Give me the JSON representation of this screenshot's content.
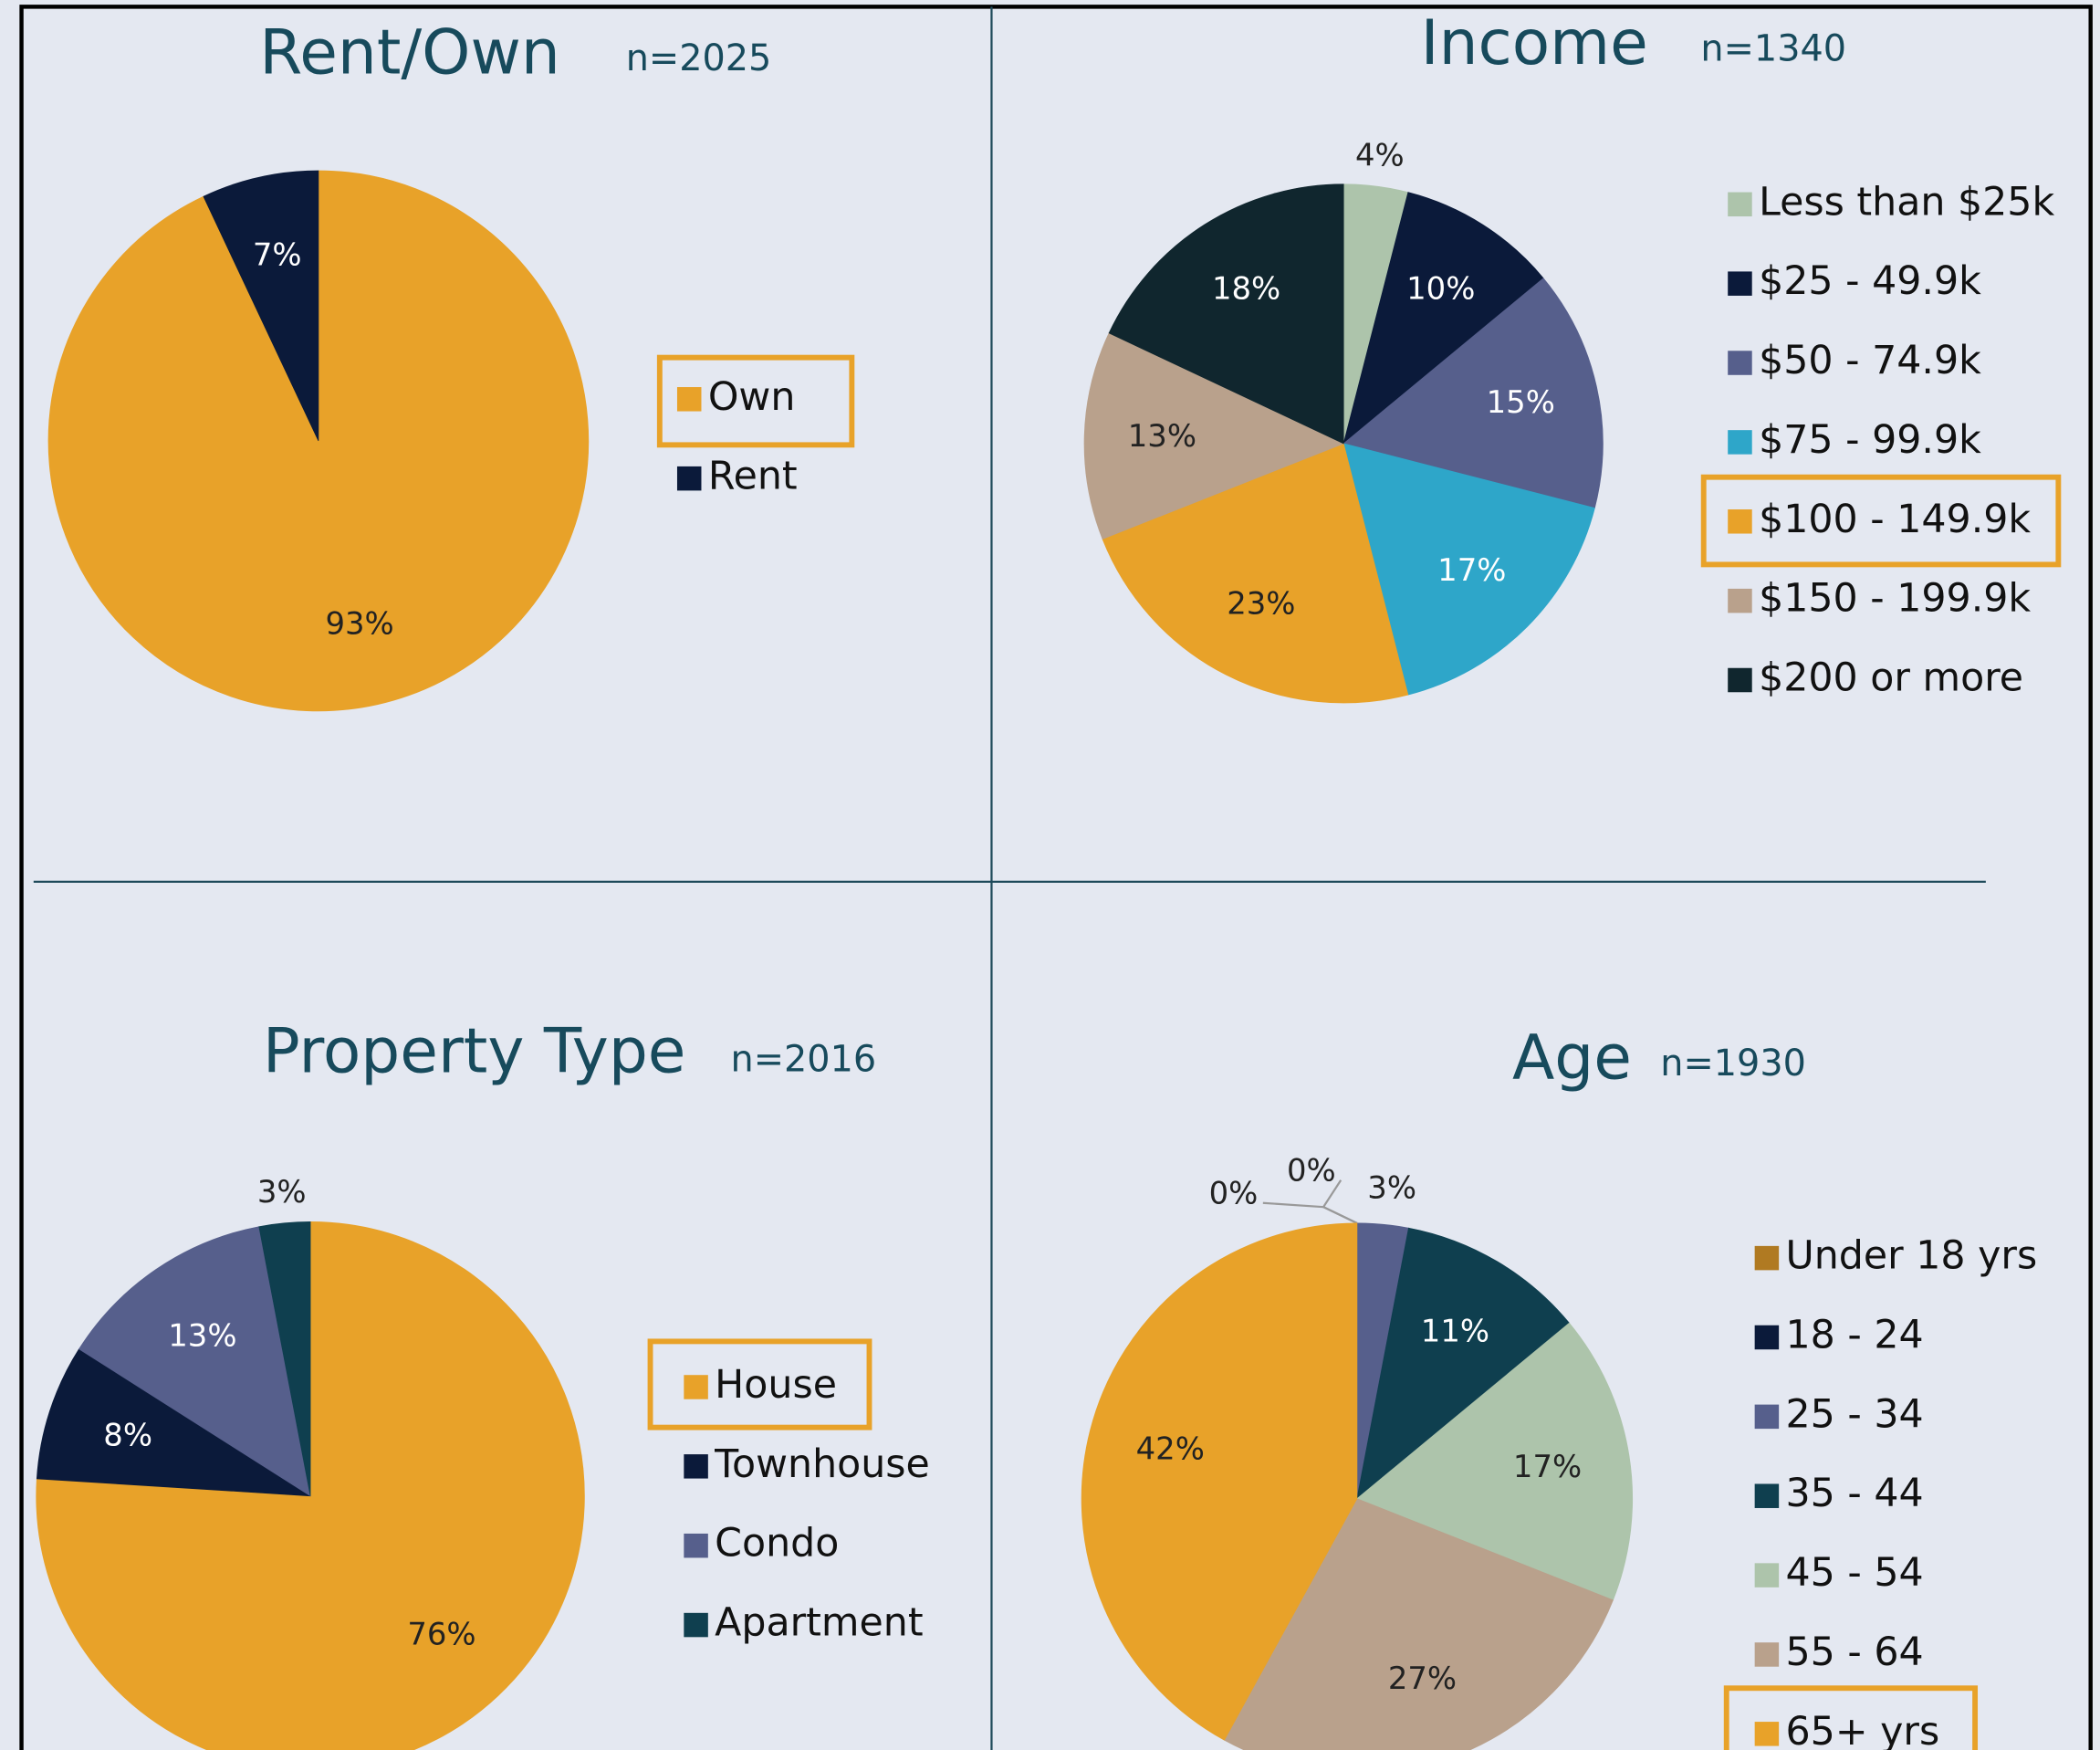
{
  "chart_data": [
    {
      "type": "pie",
      "title": "Rent/Own",
      "subtitle": "n=2025",
      "categories": [
        "Own",
        "Rent"
      ],
      "values": [
        93,
        7
      ],
      "value_labels": [
        "93%",
        "7%"
      ],
      "colors": [
        "#e8a229",
        "#0b1a3a"
      ],
      "highlight": 0
    },
    {
      "type": "pie",
      "title": "Income",
      "subtitle": "n=1340",
      "categories": [
        "Less than $25k",
        "$25 - 49.9k",
        "$50 - 74.9k",
        "$75 - 99.9k",
        "$100 - 149.9k",
        "$150 - 199.9k",
        "$200 or more"
      ],
      "values": [
        4,
        10,
        15,
        17,
        23,
        13,
        18
      ],
      "value_labels": [
        "4%",
        "10%",
        "15%",
        "17%",
        "23%",
        "13%",
        "18%"
      ],
      "colors": [
        "#adc4ab",
        "#0b1a3a",
        "#565f8c",
        "#2ea6c9",
        "#e8a229",
        "#b9a18c",
        "#10262e"
      ],
      "highlight": 4
    },
    {
      "type": "pie",
      "title": "Property Type",
      "subtitle": "n=2016",
      "categories": [
        "House",
        "Townhouse",
        "Condo",
        "Apartment"
      ],
      "values": [
        76,
        8,
        13,
        3
      ],
      "value_labels": [
        "76%",
        "8%",
        "13%",
        "3%"
      ],
      "colors": [
        "#e8a229",
        "#0b1a3a",
        "#565f8c",
        "#0f3f4f"
      ],
      "highlight": 0
    },
    {
      "type": "pie",
      "title": "Age",
      "subtitle": "n=1930",
      "categories": [
        "Under 18 yrs",
        "18 - 24",
        "25 - 34",
        "35 - 44",
        "45 - 54",
        "55 - 64",
        "65+ yrs"
      ],
      "values": [
        0,
        0,
        3,
        11,
        17,
        27,
        42
      ],
      "value_labels": [
        "0%",
        "0%",
        "3%",
        "11%",
        "17%",
        "27%",
        "42%"
      ],
      "colors": [
        "#b07a22",
        "#0b1a3a",
        "#565f8c",
        "#0f3f4f",
        "#adc4ab",
        "#b9a18c",
        "#e8a229"
      ],
      "highlight": 6
    }
  ]
}
